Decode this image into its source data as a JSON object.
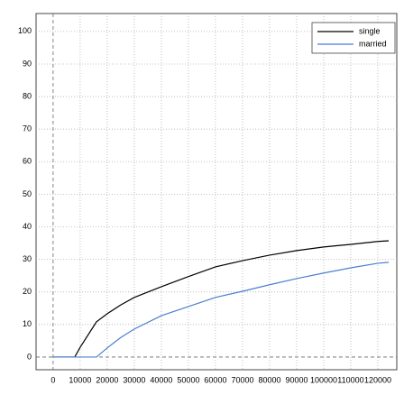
{
  "chart_data": {
    "type": "line",
    "x": [
      0,
      8000,
      10000,
      15000,
      16000,
      20000,
      25000,
      30000,
      40000,
      50000,
      60000,
      70000,
      80000,
      90000,
      100000,
      110000,
      120000,
      124000
    ],
    "series": [
      {
        "name": "single",
        "color": "#000000",
        "values": [
          0,
          0,
          3,
          9.5,
          10.8,
          13.3,
          16,
          18.3,
          21.6,
          24.7,
          27.7,
          29.6,
          31.3,
          32.7,
          33.8,
          34.6,
          35.5,
          35.7
        ]
      },
      {
        "name": "married",
        "color": "#4a7fd0",
        "values": [
          0,
          0,
          0,
          0,
          0,
          2.8,
          6,
          8.6,
          12.7,
          15.5,
          18.3,
          20.2,
          22.2,
          24.1,
          25.8,
          27.4,
          28.8,
          29.1
        ]
      }
    ],
    "xlim": [
      -6300,
      127000
    ],
    "ylim": [
      -3.9,
      105.5
    ],
    "xticks": [
      0,
      10000,
      20000,
      30000,
      40000,
      50000,
      60000,
      70000,
      80000,
      90000,
      100000,
      110000,
      120000
    ],
    "yticks": [
      0,
      10,
      20,
      30,
      40,
      50,
      60,
      70,
      80,
      90,
      100
    ],
    "grid": true,
    "legend": "upper right"
  }
}
